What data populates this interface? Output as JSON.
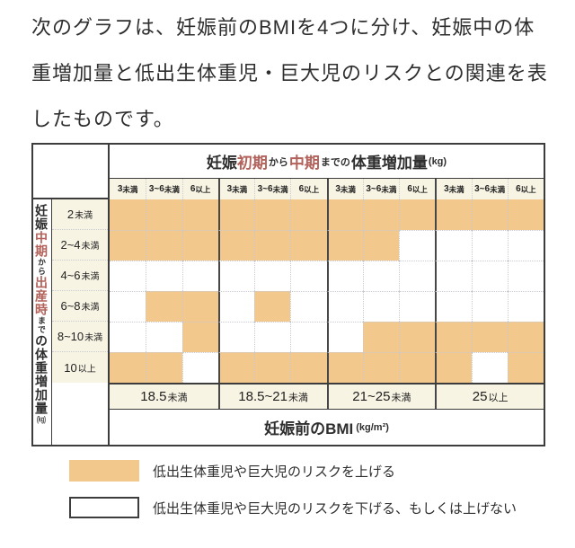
{
  "intro": {
    "lines": [
      "次のグラフは、妊娠前のBMIを4つに分け、妊娠中の体",
      "重増加量と低出生体重児・巨大児のリスクとの関連を表",
      "したものです。"
    ]
  },
  "colors": {
    "risk_up": "#f2c88c",
    "risk_neutral": "#ffffff",
    "band_bg": "#f8f4e4",
    "accent_red": "#b2625a",
    "border": "#3c3c3c",
    "text": "#2e2e2e"
  },
  "chart_data": {
    "type": "heatmap",
    "top_axis_title_parts": [
      {
        "t": "妊娠",
        "style": "base"
      },
      {
        "t": "初期",
        "style": "red"
      },
      {
        "t": "から",
        "style": "small"
      },
      {
        "t": "中期",
        "style": "red"
      },
      {
        "t": "までの",
        "style": "small"
      },
      {
        "t": "体重増加量",
        "style": "base"
      },
      {
        "t": "(kg)",
        "style": "unit"
      }
    ],
    "subcols": [
      {
        "v": "3",
        "s": "未満"
      },
      {
        "v": "3~6",
        "s": "未満"
      },
      {
        "v": "6",
        "s": "以上"
      }
    ],
    "left_axis_title_parts": [
      {
        "t": "妊娠",
        "style": "base"
      },
      {
        "t": "中期",
        "style": "red"
      },
      {
        "t": "から",
        "style": "small"
      },
      {
        "t": "出産時",
        "style": "red"
      },
      {
        "t": "まで",
        "style": "small"
      },
      {
        "t": "の",
        "style": "base"
      },
      {
        "t": "体重増加量",
        "style": "base"
      },
      {
        "t": "(kg)",
        "style": "unit"
      }
    ],
    "rows": [
      {
        "v": "2",
        "s": "未満"
      },
      {
        "v": "2~4",
        "s": "未満"
      },
      {
        "v": "4~6",
        "s": "未満"
      },
      {
        "v": "6~8",
        "s": "未満"
      },
      {
        "v": "8~10",
        "s": "未満"
      },
      {
        "v": "10",
        "s": "以上"
      }
    ],
    "bmi_groups": [
      {
        "v": "18.5",
        "s": "未満"
      },
      {
        "v": "18.5~21",
        "s": "未満"
      },
      {
        "v": "21~25",
        "s": "未満"
      },
      {
        "v": "25",
        "s": "以上"
      }
    ],
    "bottom_axis_label": "妊娠前のBMI",
    "bottom_axis_unit": "(kg/m²)",
    "cells": [
      [
        1,
        1,
        1,
        1,
        1,
        1,
        1,
        1,
        1,
        1,
        1,
        1
      ],
      [
        1,
        1,
        1,
        1,
        1,
        1,
        1,
        1,
        0,
        0,
        0,
        0
      ],
      [
        0,
        0,
        0,
        0,
        0,
        0,
        0,
        0,
        0,
        0,
        0,
        0
      ],
      [
        0,
        1,
        1,
        0,
        1,
        0,
        0,
        0,
        0,
        0,
        0,
        0
      ],
      [
        0,
        0,
        1,
        0,
        0,
        0,
        0,
        1,
        1,
        1,
        1,
        1
      ],
      [
        1,
        1,
        0,
        1,
        1,
        1,
        1,
        1,
        1,
        1,
        0,
        1
      ]
    ],
    "legend": [
      {
        "color": "#f2c88c",
        "label": "低出生体重児や巨大児のリスクを上げる"
      },
      {
        "color": "#ffffff",
        "label": "低出生体重児や巨大児のリスクを下げる、もしくは上げない"
      }
    ]
  }
}
